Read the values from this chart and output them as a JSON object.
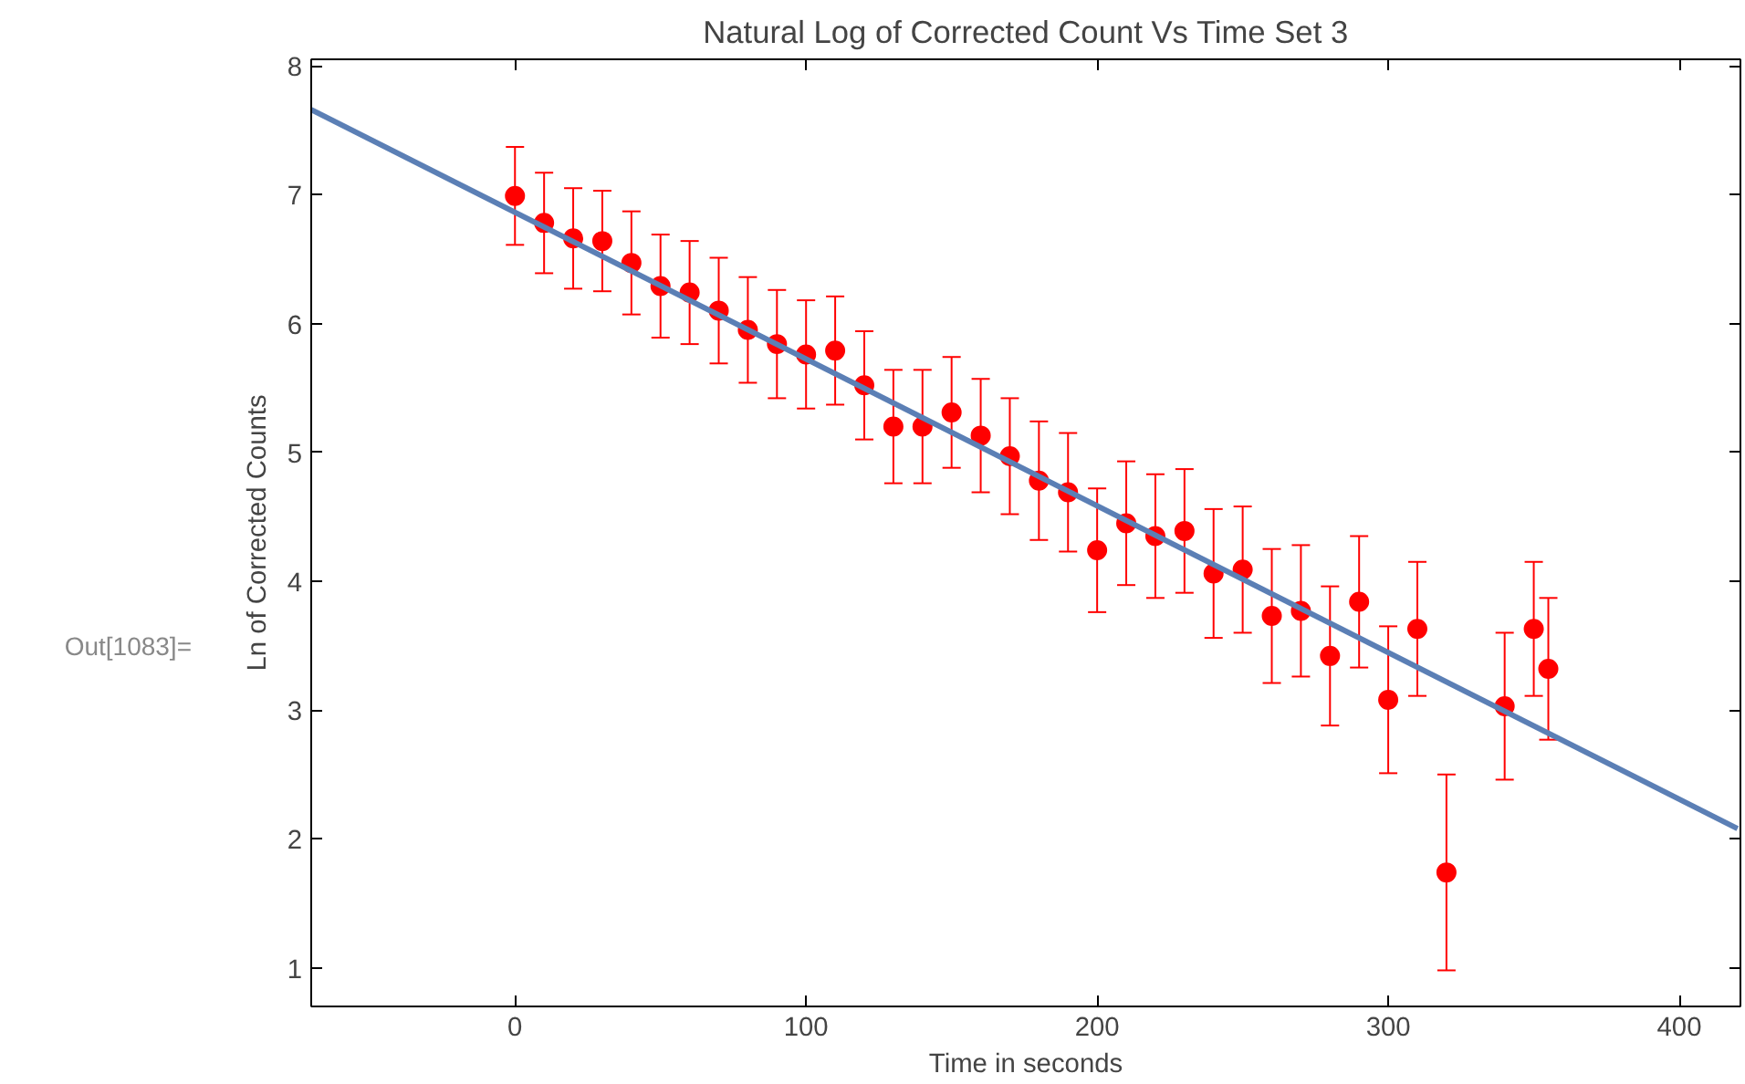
{
  "chart_data": {
    "type": "scatter",
    "title": "Natural Log of Corrected Count Vs Time Set 3",
    "xlabel": "Time in seconds",
    "ylabel": "Ln of Corrected Counts",
    "annotations": [
      "Out[1083]="
    ],
    "x": [
      0,
      10,
      20,
      30,
      40,
      50,
      60,
      70,
      80,
      90,
      100,
      110,
      120,
      130,
      140,
      150,
      160,
      170,
      180,
      190,
      200,
      210,
      220,
      230,
      240,
      250,
      260,
      270,
      280,
      290,
      300,
      310,
      320,
      340,
      350,
      355
    ],
    "series": [
      {
        "color": "#ff0000",
        "marker": "circle",
        "values": [
          6.99,
          6.78,
          6.66,
          6.64,
          6.47,
          6.29,
          6.24,
          6.1,
          5.95,
          5.84,
          5.76,
          5.79,
          5.52,
          5.2,
          5.2,
          5.31,
          5.13,
          4.97,
          4.78,
          4.69,
          4.24,
          4.45,
          4.35,
          4.39,
          4.06,
          4.09,
          3.73,
          3.77,
          3.42,
          3.84,
          3.08,
          3.63,
          1.74,
          3.03,
          3.63,
          3.32
        ],
        "errors": [
          0.38,
          0.39,
          0.39,
          0.39,
          0.4,
          0.4,
          0.4,
          0.41,
          0.41,
          0.42,
          0.42,
          0.42,
          0.42,
          0.44,
          0.44,
          0.43,
          0.44,
          0.45,
          0.46,
          0.46,
          0.48,
          0.48,
          0.48,
          0.48,
          0.5,
          0.49,
          0.52,
          0.51,
          0.54,
          0.51,
          0.57,
          0.52,
          0.76,
          0.57,
          0.52,
          0.55
        ]
      },
      {
        "type": "line",
        "color": "#5b7fb5",
        "x": [
          -70,
          420
        ],
        "values": [
          7.66,
          2.08
        ]
      }
    ],
    "xlim": [
      -70,
      421
    ],
    "ylim": [
      0.7,
      8.05
    ],
    "xticks": [
      0,
      100,
      200,
      300,
      400
    ],
    "yticks": [
      1,
      2,
      3,
      4,
      5,
      6,
      7,
      8
    ],
    "grid": false
  }
}
